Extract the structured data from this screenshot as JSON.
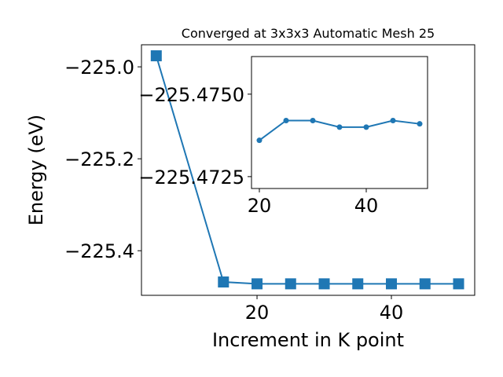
{
  "chart_data": [
    {
      "type": "line",
      "title": "Converged at 3x3x3 Automatic Mesh 25",
      "x_label": "Increment in K point",
      "y_label": "Energy (eV)",
      "x": [
        5,
        15,
        20,
        25,
        30,
        35,
        40,
        45,
        50
      ],
      "series": [
        {
          "color": "#1f77b4",
          "marker": "square",
          "values": [
            -224.976,
            -225.468,
            -225.472,
            -225.472,
            -225.472,
            -225.472,
            -225.472,
            -225.472,
            -225.472
          ]
        }
      ],
      "xlim": [
        2.8,
        52.4
      ],
      "xticks": [
        20,
        40
      ],
      "ylim": [
        -225.497,
        -224.952
      ],
      "yticks": [
        {
          "value": -225.4,
          "label": "−225.4"
        },
        {
          "value": -225.2,
          "label": "−225.2"
        },
        {
          "value": -225.0,
          "label": "−225.0"
        }
      ]
    },
    {
      "type": "line",
      "inset": true,
      "x": [
        20,
        25,
        30,
        35,
        40,
        45,
        50
      ],
      "series": [
        {
          "color": "#1f77b4",
          "marker": "circle",
          "values": [
            -225.4736,
            -225.4742,
            -225.4742,
            -225.474,
            -225.474,
            -225.4742,
            -225.4741
          ]
        }
      ],
      "xlim": [
        18.53,
        51.47
      ],
      "xticks": [
        20,
        40
      ],
      "ylim": [
        -225.47214,
        -225.47614
      ],
      "yticks": [
        {
          "value": -225.4725,
          "label": "−225.4725"
        },
        {
          "value": -225.475,
          "label": "−225.4750"
        }
      ]
    }
  ]
}
